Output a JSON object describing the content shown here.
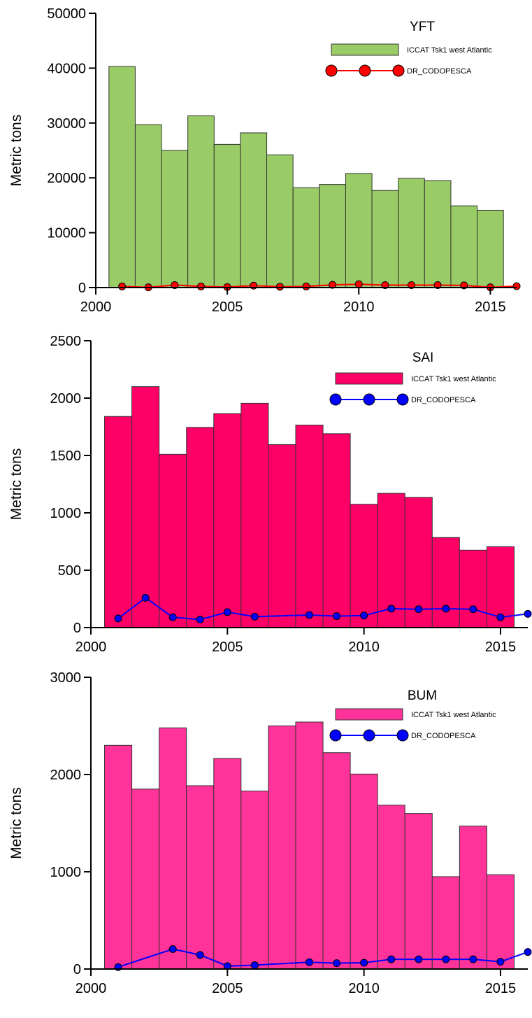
{
  "chart_data": [
    {
      "type": "bar",
      "title": "YFT",
      "y_label": "Metric tons",
      "legend": "upper right",
      "xlim": [
        2000,
        2016
      ],
      "xticks": [
        2000,
        2005,
        2010,
        2015
      ],
      "ylim": [
        0,
        50000
      ],
      "yticks": [
        0,
        10000,
        20000,
        30000,
        40000,
        50000
      ],
      "series": [
        {
          "name": "ICCAT Tsk1 west Atlantic",
          "type": "bar",
          "color": "#99cc66",
          "x": [
            2001,
            2002,
            2003,
            2004,
            2005,
            2006,
            2007,
            2008,
            2009,
            2010,
            2011,
            2012,
            2013,
            2014,
            2015
          ],
          "values": [
            40300,
            29700,
            25000,
            31300,
            26100,
            28200,
            24200,
            18200,
            18800,
            20800,
            17700,
            19900,
            19500,
            14900,
            14100
          ]
        },
        {
          "name": "DR_CODOPESCA",
          "type": "line",
          "color": "#ff0000",
          "x": [
            2001,
            2002,
            2003,
            2004,
            2005,
            2006,
            2007,
            2008,
            2009,
            2010,
            2011,
            2012,
            2013,
            2014,
            2015,
            2016
          ],
          "values": [
            200,
            50,
            450,
            200,
            100,
            350,
            150,
            200,
            500,
            600,
            450,
            450,
            450,
            400,
            50,
            250
          ]
        }
      ]
    },
    {
      "type": "bar",
      "title": "SAI",
      "y_label": "Metric tons",
      "legend": "upper right",
      "xlim": [
        2000,
        2016
      ],
      "xticks": [
        2000,
        2005,
        2010,
        2015
      ],
      "ylim": [
        0,
        2500
      ],
      "yticks": [
        0,
        500,
        1000,
        1500,
        2000,
        2500
      ],
      "series": [
        {
          "name": "ICCAT Tsk1 west Atlantic",
          "type": "bar",
          "color": "#ff0066",
          "x": [
            2001,
            2002,
            2003,
            2004,
            2005,
            2006,
            2007,
            2008,
            2009,
            2010,
            2011,
            2012,
            2013,
            2014,
            2015
          ],
          "values": [
            1840,
            2100,
            1510,
            1745,
            1865,
            1955,
            1595,
            1765,
            1690,
            1075,
            1170,
            1135,
            785,
            675,
            705
          ]
        },
        {
          "name": "DR_CODOPESCA",
          "type": "line",
          "color": "#0000ff",
          "x": [
            2001,
            2002,
            2003,
            2004,
            2005,
            2006,
            2008,
            2009,
            2010,
            2011,
            2012,
            2013,
            2014,
            2015,
            2016
          ],
          "values": [
            80,
            260,
            90,
            70,
            135,
            95,
            110,
            100,
            105,
            165,
            160,
            165,
            160,
            90,
            120
          ]
        }
      ]
    },
    {
      "type": "bar",
      "title": "BUM",
      "y_label": "Metric tons",
      "legend": "upper right",
      "xlim": [
        2000,
        2016
      ],
      "xticks": [
        2000,
        2005,
        2010,
        2015
      ],
      "ylim": [
        0,
        3000
      ],
      "yticks": [
        0,
        1000,
        2000,
        3000
      ],
      "series": [
        {
          "name": "ICCAT Tsk1 west Atlantic",
          "type": "bar",
          "color": "#ff3399",
          "x": [
            2001,
            2002,
            2003,
            2004,
            2005,
            2006,
            2007,
            2008,
            2009,
            2010,
            2011,
            2012,
            2013,
            2014,
            2015
          ],
          "values": [
            2300,
            1850,
            2480,
            1885,
            2165,
            1830,
            2500,
            2540,
            2225,
            2005,
            1685,
            1600,
            950,
            1470,
            970
          ]
        },
        {
          "name": "DR_CODOPESCA",
          "type": "line",
          "color": "#0000ff",
          "x": [
            2001,
            2003,
            2004,
            2005,
            2006,
            2008,
            2009,
            2010,
            2011,
            2012,
            2013,
            2014,
            2015,
            2016
          ],
          "values": [
            20,
            205,
            145,
            30,
            40,
            70,
            60,
            65,
            100,
            100,
            100,
            100,
            75,
            175
          ]
        }
      ]
    }
  ]
}
